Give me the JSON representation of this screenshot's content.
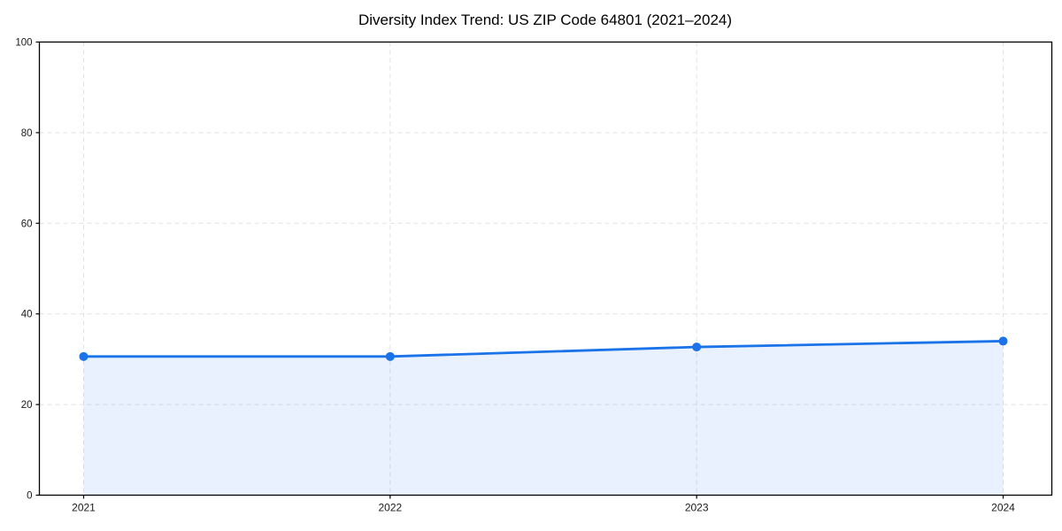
{
  "page": {
    "background_color": "#ffffff"
  },
  "chart_data": {
    "type": "area",
    "title": "Diversity Index Trend: US ZIP Code 64801 (2021–2024)",
    "categories": [
      "2021",
      "2022",
      "2023",
      "2024"
    ],
    "values": [
      30.6,
      30.6,
      32.7,
      34.0
    ],
    "xlabel": "",
    "ylabel": "",
    "ylim": [
      0,
      100
    ],
    "yticks": [
      0,
      20,
      40,
      60,
      80,
      100
    ],
    "grid": true,
    "grid_style": "dashed",
    "legend": false,
    "line_color": "#1a73e8",
    "marker_color": "#1a73e8",
    "fill_color": "#1a73e8",
    "fill_opacity": 0.1,
    "grid_color": "#e2e2e2",
    "axis_color": "#000000",
    "tick_label_color": "#1a1a1a",
    "title_color": "#000000"
  }
}
